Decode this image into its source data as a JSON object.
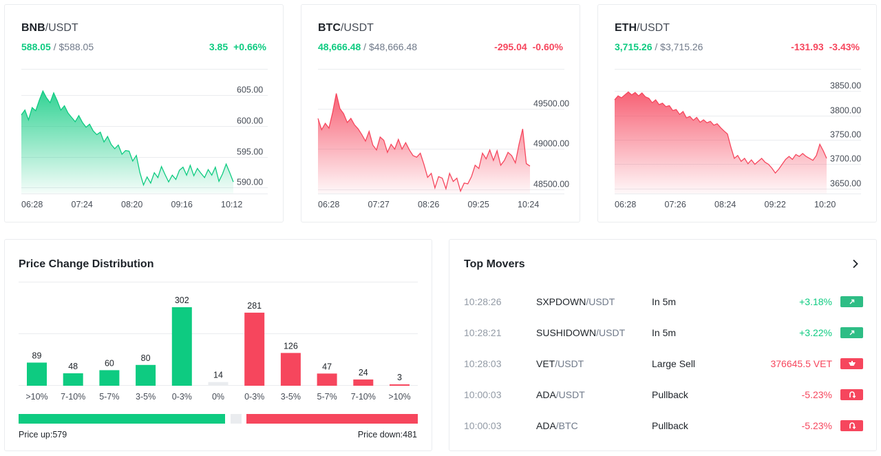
{
  "tickers": [
    {
      "base": "BNB",
      "quote": "/USDT",
      "last": "588.05",
      "sep": " / ",
      "usd": "$588.05",
      "change": "3.85",
      "change_pct": "+0.66%",
      "direction": "up",
      "chart_data": {
        "type": "area",
        "x_labels": [
          "06:28",
          "07:24",
          "08:20",
          "09:16",
          "10:12"
        ],
        "y_ticks": [
          605,
          600,
          595,
          590
        ],
        "y_tick_labels": [
          "605.00",
          "600.00",
          "595.00",
          "590.00"
        ],
        "ylim": [
          589,
          606.5
        ],
        "values": [
          601.8,
          602.6,
          601.0,
          603.0,
          602.5,
          604.2,
          605.7,
          604.6,
          603.8,
          605.4,
          604.1,
          602.6,
          603.3,
          602.1,
          601.4,
          600.7,
          601.7,
          600.6,
          599.8,
          600.3,
          599.2,
          598.6,
          599.0,
          597.4,
          598.3,
          597.0,
          596.3,
          596.9,
          595.4,
          596.0,
          595.9,
          594.3,
          595.2,
          592.4,
          590.4,
          591.7,
          590.7,
          592.4,
          591.6,
          593.4,
          592.1,
          590.9,
          592.0,
          591.3,
          592.8,
          593.3,
          592.0,
          593.6,
          591.9,
          593.1,
          592.3,
          591.6,
          592.9,
          592.0,
          593.3,
          591.0,
          592.2,
          593.8,
          592.4,
          590.9
        ]
      }
    },
    {
      "base": "BTC",
      "quote": "/USDT",
      "last": "48,666.48",
      "sep": " / ",
      "usd": "$48,666.48",
      "change": "-295.04",
      "change_pct": "-0.60%",
      "direction": "down",
      "chart_data": {
        "type": "area",
        "x_labels": [
          "06:28",
          "07:27",
          "08:26",
          "09:25",
          "10:24"
        ],
        "y_ticks": [
          49500,
          49000,
          48500
        ],
        "y_tick_labels": [
          "49500.00",
          "49000.00",
          "48500.00"
        ],
        "ylim": [
          48450,
          49780
        ],
        "values": [
          49380,
          49240,
          49320,
          49260,
          49450,
          49690,
          49500,
          49440,
          49330,
          49380,
          49300,
          49250,
          49180,
          49100,
          49220,
          49050,
          48990,
          49150,
          49110,
          48960,
          49060,
          49000,
          49120,
          49000,
          49080,
          48990,
          48920,
          48900,
          48950,
          48810,
          48650,
          48700,
          48520,
          48660,
          48640,
          48510,
          48700,
          48600,
          48640,
          48480,
          48580,
          48570,
          48660,
          48800,
          48760,
          48950,
          48880,
          48990,
          48860,
          48980,
          48800,
          48860,
          48960,
          48920,
          48830,
          49060,
          49250,
          48820,
          48790
        ]
      }
    },
    {
      "base": "ETH",
      "quote": "/USDT",
      "last": "3,715.26",
      "sep": " / ",
      "usd": "$3,715.26",
      "change": "-131.93",
      "change_pct": "-3.43%",
      "direction": "down",
      "chart_data": {
        "type": "area",
        "x_labels": [
          "06:28",
          "07:26",
          "08:24",
          "09:22",
          "10:20"
        ],
        "y_ticks": [
          3850,
          3800,
          3750,
          3700,
          3650
        ],
        "y_tick_labels": [
          "3850.00",
          "3800.00",
          "3750.00",
          "3700.00",
          "3650.00"
        ],
        "ylim": [
          3640,
          3860
        ],
        "values": [
          3832,
          3840,
          3836,
          3842,
          3848,
          3842,
          3847,
          3840,
          3846,
          3838,
          3835,
          3826,
          3832,
          3822,
          3825,
          3818,
          3820,
          3810,
          3812,
          3802,
          3808,
          3795,
          3798,
          3790,
          3796,
          3786,
          3791,
          3785,
          3788,
          3780,
          3783,
          3775,
          3768,
          3762,
          3735,
          3712,
          3718,
          3706,
          3712,
          3701,
          3709,
          3700,
          3706,
          3712,
          3704,
          3700,
          3692,
          3682,
          3690,
          3700,
          3710,
          3716,
          3710,
          3720,
          3716,
          3722,
          3716,
          3712,
          3708,
          3718,
          3741,
          3728,
          3712
        ]
      }
    }
  ],
  "distribution": {
    "title": "Price Change Distribution",
    "up_label": "Price up:579",
    "down_label": "Price down:481",
    "up_total": 579,
    "down_total": 481,
    "chart_data": {
      "type": "bar",
      "categories": [
        ">10%",
        "7-10%",
        "5-7%",
        "3-5%",
        "0-3%",
        "0%",
        "0-3%",
        "3-5%",
        "5-7%",
        "7-10%",
        ">10%"
      ],
      "values": [
        89,
        48,
        60,
        80,
        302,
        14,
        281,
        126,
        47,
        24,
        3
      ],
      "value_labels": [
        "89",
        "48",
        "60",
        "80",
        "302",
        "14",
        "281",
        "126",
        "47",
        "24",
        "3"
      ],
      "bar_colors": [
        "#0ecb81",
        "#0ecb81",
        "#0ecb81",
        "#0ecb81",
        "#0ecb81",
        "#eaecef",
        "#f6465d",
        "#f6465d",
        "#f6465d",
        "#f6465d",
        "#f6465d"
      ],
      "ylim": [
        0,
        302
      ]
    }
  },
  "movers": {
    "title": "Top Movers",
    "more_icon": "chevron-right-icon",
    "rows": [
      {
        "time": "10:28:26",
        "base": "SXPDOWN",
        "quote": "/USDT",
        "type": "In 5m",
        "value": "+3.18%",
        "direction": "up",
        "icon": "arrow-up-right-icon"
      },
      {
        "time": "10:28:21",
        "base": "SUSHIDOWN",
        "quote": "/USDT",
        "type": "In 5m",
        "value": "+3.22%",
        "direction": "up",
        "icon": "arrow-up-right-icon"
      },
      {
        "time": "10:28:03",
        "base": "VET",
        "quote": "/USDT",
        "type": "Large Sell",
        "value": "376645.5 VET",
        "direction": "down",
        "icon": "large-sell-icon"
      },
      {
        "time": "10:00:03",
        "base": "ADA",
        "quote": "/USDT",
        "type": "Pullback",
        "value": "-5.23%",
        "direction": "down",
        "icon": "pullback-icon"
      },
      {
        "time": "10:00:03",
        "base": "ADA",
        "quote": "/BTC",
        "type": "Pullback",
        "value": "-5.23%",
        "direction": "down",
        "icon": "pullback-icon"
      }
    ]
  },
  "colors": {
    "up": "#0ecb81",
    "down": "#f6465d",
    "flat": "#eaecef",
    "grid": "#eaecef"
  }
}
